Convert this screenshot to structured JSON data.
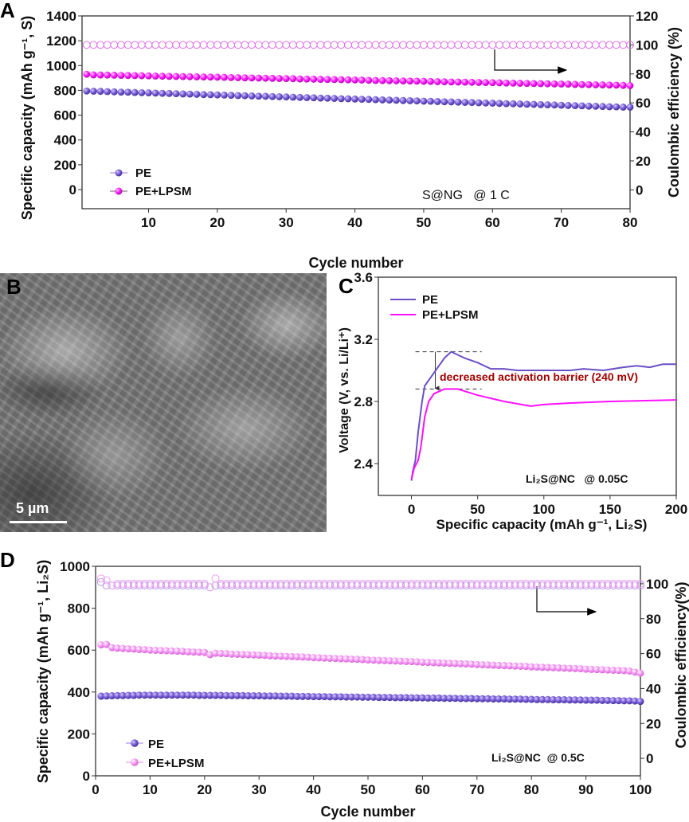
{
  "panel_labels": {
    "a": "A",
    "b": "B",
    "c": "C",
    "d": "D"
  },
  "sem_image": {
    "scale_bar": "5 µm"
  },
  "colors": {
    "pe": "#6a4fc6",
    "pe_lpsm_a": "#ff10ff",
    "pe_lpsm_d": "#f080f0",
    "ce_a": "#e070e8",
    "ce_d_pe": "#b49be6",
    "ce_d_lpsm": "#f0a0f0",
    "annotation": "#a00000"
  },
  "chart_data": [
    {
      "panel": "A",
      "type": "scatter",
      "xlabel": "Cycle number",
      "ylabel": "Specific capacity (mAh g⁻¹, S)",
      "y2label": "Coulombic efficiency (%)",
      "xlim": [
        0.33,
        80
      ],
      "ylim": [
        -154,
        1400
      ],
      "y2lim": [
        -13,
        120
      ],
      "x_ticks": [
        10,
        20,
        30,
        40,
        50,
        60,
        70,
        80
      ],
      "y_ticks": [
        0,
        200,
        400,
        600,
        800,
        1000,
        1200,
        1400
      ],
      "y2_ticks": [
        0,
        20,
        40,
        60,
        80,
        100,
        120
      ],
      "legend": [
        "PE",
        "PE+LPSM"
      ],
      "legend_position": "bottom-left",
      "annotation": "S@NG   @ 1 C",
      "arrow_direction": "right",
      "series": [
        {
          "name": "PE",
          "axis": "left",
          "values": [
            795,
            793,
            792,
            790,
            788,
            786,
            785,
            783,
            781,
            780,
            778,
            776,
            775,
            773,
            771,
            770,
            768,
            766,
            765,
            763,
            762,
            760,
            758,
            757,
            755,
            753,
            752,
            750,
            748,
            747,
            745,
            743,
            742,
            740,
            738,
            737,
            735,
            733,
            732,
            730,
            728,
            727,
            725,
            723,
            722,
            720,
            718,
            717,
            715,
            713,
            712,
            710,
            708,
            707,
            705,
            703,
            702,
            700,
            698,
            697,
            695,
            693,
            692,
            690,
            688,
            687,
            685,
            683,
            682,
            680,
            678,
            677,
            675,
            673,
            672,
            670,
            668,
            667,
            665,
            665
          ]
        },
        {
          "name": "PE+LPSM",
          "axis": "left",
          "values": [
            930,
            925,
            924,
            923,
            922,
            921,
            920,
            919,
            918,
            917,
            915,
            914,
            913,
            912,
            911,
            910,
            909,
            908,
            907,
            906,
            905,
            903,
            902,
            901,
            900,
            899,
            898,
            897,
            896,
            895,
            894,
            892,
            891,
            890,
            889,
            888,
            887,
            886,
            885,
            884,
            883,
            881,
            880,
            879,
            878,
            877,
            876,
            875,
            874,
            873,
            872,
            870,
            869,
            868,
            867,
            866,
            865,
            864,
            863,
            862,
            861,
            859,
            858,
            857,
            856,
            855,
            854,
            853,
            852,
            851,
            850,
            848,
            847,
            846,
            845,
            844,
            843,
            842,
            840,
            838
          ]
        },
        {
          "name": "Coulombic efficiency",
          "axis": "right",
          "values": [
            100,
            100,
            100,
            100,
            100,
            100,
            100,
            100,
            100,
            100,
            100,
            100,
            100,
            100,
            100,
            100,
            100,
            100,
            100,
            100,
            100,
            100,
            100,
            100,
            100,
            100,
            100,
            100,
            100,
            100,
            100,
            100,
            100,
            100,
            100,
            100,
            100,
            100,
            100,
            100,
            100,
            100,
            100,
            100,
            100,
            100,
            100,
            100,
            100,
            100,
            100,
            100,
            100,
            100,
            100,
            100,
            100,
            100,
            100,
            100,
            100,
            100,
            100,
            100,
            100,
            100,
            100,
            100,
            100,
            100,
            100,
            100,
            100,
            100,
            100,
            100,
            100,
            100,
            100,
            100
          ]
        }
      ]
    },
    {
      "panel": "C",
      "type": "line",
      "xlabel": "Specific capacity (mAh g⁻¹, Li₂S)",
      "ylabel": "Voltage (V, vs. Li/Li⁺)",
      "xlim": [
        -25,
        200
      ],
      "ylim": [
        2.195,
        3.6
      ],
      "x_ticks": [
        0,
        50,
        100,
        150,
        200
      ],
      "y_ticks": [
        "2.4",
        "2.8",
        "3.2",
        "3.6"
      ],
      "legend": [
        "PE",
        "PE+LPSM"
      ],
      "legend_position": "top-left",
      "annotation": "decreased activation barrier (240 mV)",
      "condition": "Li₂S@NC   @ 0.05C",
      "barrier_levels": [
        3.12,
        2.88
      ],
      "series": [
        {
          "name": "PE",
          "x": [
            0,
            1,
            3,
            5,
            8,
            10,
            15,
            20,
            25,
            30,
            35,
            40,
            50,
            60,
            70,
            80,
            90,
            100,
            120,
            130,
            145,
            160,
            170,
            180,
            190,
            200
          ],
          "y": [
            2.29,
            2.35,
            2.42,
            2.6,
            2.8,
            2.9,
            2.96,
            3.02,
            3.08,
            3.12,
            3.1,
            3.08,
            3.05,
            3.01,
            3.01,
            3.0,
            3.0,
            3.0,
            3.0,
            3.01,
            3.0,
            3.02,
            3.03,
            3.02,
            3.04,
            3.04
          ]
        },
        {
          "name": "PE+LPSM",
          "x": [
            0,
            2,
            5,
            7,
            10,
            13,
            17,
            25,
            35,
            50,
            70,
            90,
            100,
            120,
            150,
            200
          ],
          "y": [
            2.3,
            2.37,
            2.42,
            2.5,
            2.7,
            2.8,
            2.85,
            2.88,
            2.88,
            2.84,
            2.8,
            2.77,
            2.78,
            2.79,
            2.8,
            2.81
          ]
        }
      ]
    },
    {
      "panel": "D",
      "type": "scatter",
      "xlabel": "Cycle number",
      "ylabel": "Specific capacity (mAh g⁻¹, Li₂S)",
      "y2label": "Coulombic efficiency(%)",
      "xlim": [
        0,
        100
      ],
      "ylim": [
        0,
        1000
      ],
      "y2lim": [
        -10,
        110
      ],
      "x_ticks": [
        0,
        10,
        20,
        30,
        40,
        50,
        60,
        70,
        80,
        90,
        100
      ],
      "y_ticks": [
        0,
        200,
        400,
        600,
        800,
        1000
      ],
      "y2_ticks": [
        0,
        20,
        40,
        60,
        80,
        100
      ],
      "legend": [
        "PE",
        "PE+LPSM"
      ],
      "legend_position": "bottom-left",
      "annotation": "Li₂S@NC  @ 0.5C",
      "arrow_direction": "right",
      "series": [
        {
          "name": "PE",
          "axis": "left",
          "values": [
            380,
            381,
            382,
            383,
            383,
            384,
            384,
            385,
            385,
            385,
            385,
            385,
            385,
            385,
            385,
            385,
            385,
            385,
            384,
            384,
            384,
            384,
            384,
            383,
            383,
            383,
            383,
            382,
            382,
            382,
            381,
            381,
            381,
            380,
            380,
            380,
            379,
            379,
            379,
            378,
            378,
            378,
            377,
            377,
            377,
            376,
            376,
            376,
            375,
            375,
            375,
            374,
            374,
            374,
            373,
            373,
            373,
            372,
            372,
            372,
            371,
            371,
            371,
            370,
            370,
            370,
            369,
            369,
            369,
            368,
            368,
            368,
            367,
            367,
            367,
            366,
            366,
            366,
            365,
            365,
            364,
            364,
            364,
            363,
            363,
            363,
            362,
            362,
            362,
            361,
            361,
            361,
            360,
            360,
            359,
            359,
            358,
            358,
            357,
            355
          ]
        },
        {
          "name": "PE+LPSM",
          "axis": "left",
          "values": [
            625,
            627,
            612,
            609,
            608,
            606,
            605,
            603,
            602,
            600,
            599,
            598,
            597,
            596,
            595,
            594,
            592,
            591,
            590,
            589,
            578,
            585,
            584,
            583,
            581,
            580,
            579,
            578,
            577,
            576,
            575,
            573,
            572,
            571,
            570,
            569,
            568,
            567,
            566,
            564,
            563,
            562,
            561,
            560,
            559,
            558,
            557,
            556,
            555,
            553,
            552,
            551,
            550,
            549,
            548,
            547,
            546,
            545,
            544,
            542,
            541,
            540,
            539,
            538,
            537,
            536,
            535,
            534,
            533,
            531,
            530,
            529,
            528,
            527,
            526,
            525,
            524,
            523,
            522,
            520,
            519,
            518,
            517,
            516,
            515,
            514,
            513,
            512,
            511,
            509,
            508,
            507,
            506,
            505,
            504,
            503,
            502,
            500,
            495,
            490
          ]
        },
        {
          "name": "PE CE",
          "axis": "right",
          "values": [
            101,
            99,
            99,
            99,
            99,
            99,
            99,
            99,
            99,
            99,
            99,
            99,
            99,
            99,
            99,
            99,
            99,
            99,
            99,
            99,
            98,
            99,
            99,
            99,
            99,
            99,
            99,
            99,
            99,
            99,
            99,
            99,
            99,
            99,
            99,
            99,
            99,
            99,
            99,
            99,
            99,
            99,
            99,
            99,
            99,
            99,
            99,
            99,
            99,
            99,
            99,
            99,
            99,
            99,
            99,
            99,
            99,
            99,
            99,
            99,
            99,
            99,
            99,
            99,
            99,
            99,
            99,
            99,
            99,
            99,
            99,
            99,
            99,
            99,
            99,
            99,
            99,
            99,
            99,
            99,
            99,
            99,
            99,
            99,
            99,
            99,
            99,
            99,
            99,
            99,
            99,
            99,
            99,
            99,
            99,
            99,
            99,
            99,
            99,
            99
          ]
        },
        {
          "name": "PE+LPSM CE",
          "axis": "right",
          "values": [
            103,
            102,
            99,
            100,
            100,
            100,
            100,
            100,
            100,
            100,
            100,
            100,
            100,
            100,
            100,
            100,
            100,
            100,
            100,
            100,
            98,
            103,
            100,
            100,
            100,
            100,
            100,
            100,
            100,
            100,
            100,
            100,
            100,
            100,
            100,
            100,
            100,
            100,
            100,
            100,
            100,
            100,
            100,
            100,
            100,
            100,
            100,
            100,
            100,
            100,
            100,
            100,
            100,
            100,
            100,
            100,
            100,
            100,
            100,
            100,
            100,
            100,
            100,
            100,
            100,
            100,
            100,
            100,
            100,
            100,
            100,
            100,
            100,
            100,
            100,
            100,
            100,
            100,
            100,
            100,
            100,
            100,
            100,
            100,
            100,
            100,
            100,
            100,
            100,
            100,
            100,
            100,
            100,
            100,
            100,
            100,
            100,
            100,
            100,
            100
          ]
        }
      ]
    }
  ]
}
